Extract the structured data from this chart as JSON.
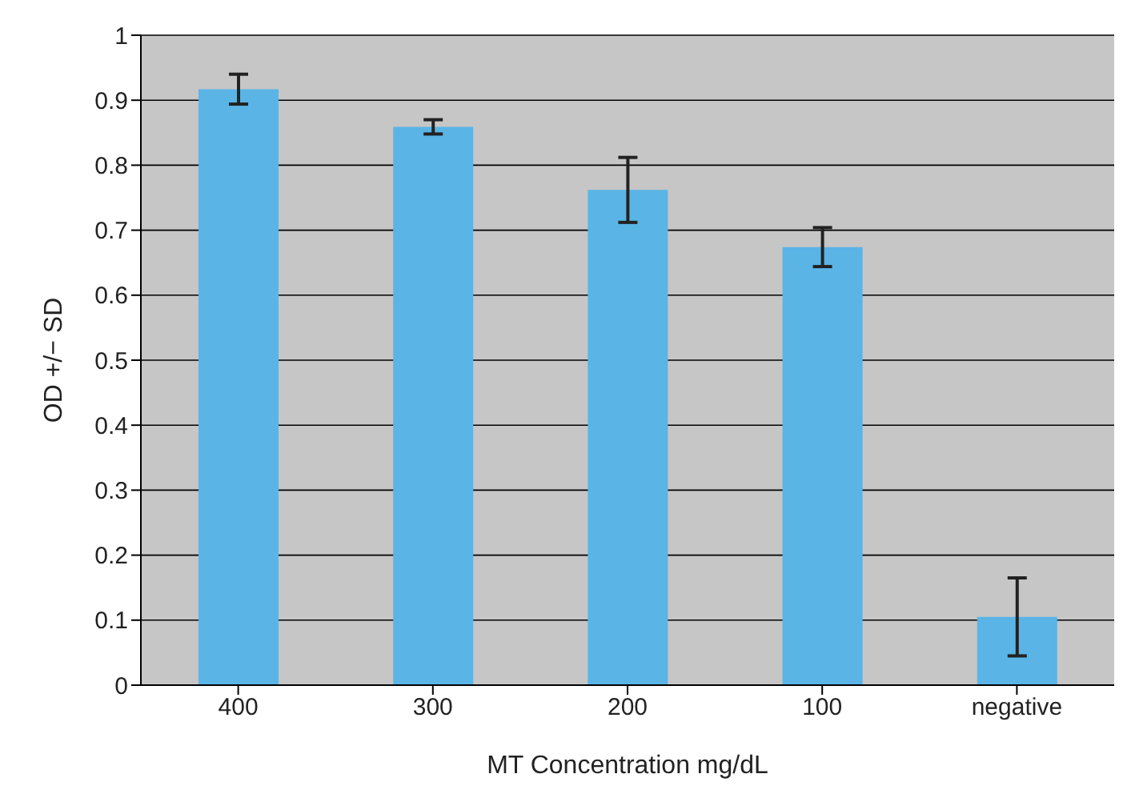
{
  "chart_data": {
    "type": "bar",
    "xlabel": "MT Concentration mg/dL",
    "ylabel": "OD +/− SD",
    "categories": [
      "400",
      "300",
      "200",
      "100",
      "negative"
    ],
    "values": [
      0.917,
      0.859,
      0.762,
      0.674,
      0.105
    ],
    "errors": [
      0.023,
      0.011,
      0.05,
      0.03,
      0.06
    ],
    "color": "#5ab4e6",
    "ylim": [
      0,
      1
    ],
    "yticks": [
      0,
      0.1,
      0.2,
      0.3,
      0.4,
      0.5,
      0.6,
      0.7,
      0.8,
      0.9,
      1
    ],
    "grid": "y"
  }
}
